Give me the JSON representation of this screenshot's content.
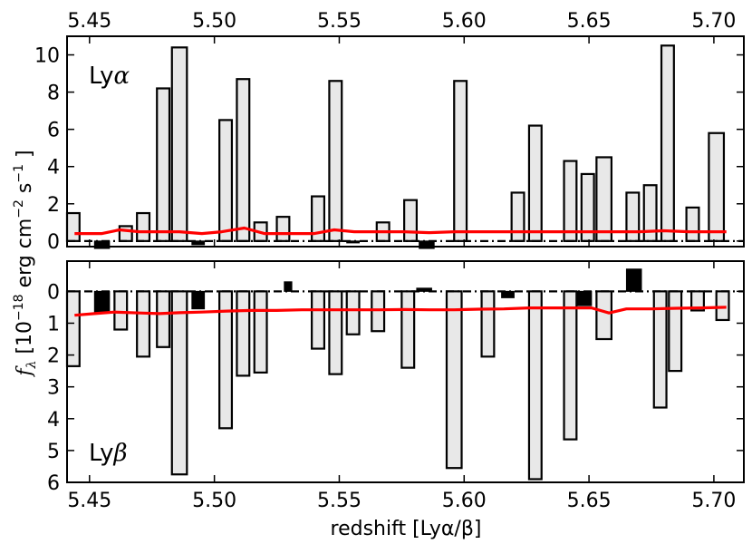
{
  "chart_data": {
    "type": "bar",
    "xlabel": "redshift [Lyα/β]",
    "ylabel": "f_λ [10^-18 erg cm^-2 s^-1]",
    "xlim": [
      5.441,
      5.712
    ],
    "x_ticks": [
      "5.45",
      "5.50",
      "5.55",
      "5.60",
      "5.65",
      "5.70"
    ],
    "grid": false,
    "panels": [
      {
        "name": "Lyα",
        "ylim": [
          -0.3,
          11
        ],
        "y_ticks": [
          0,
          2,
          4,
          6,
          8,
          10
        ],
        "inverted": false,
        "bars": [
          {
            "x0": 5.441,
            "x1": 5.446,
            "v": 1.5
          },
          {
            "x0": 5.462,
            "x1": 5.467,
            "v": 0.8
          },
          {
            "x0": 5.469,
            "x1": 5.474,
            "v": 1.5
          },
          {
            "x0": 5.477,
            "x1": 5.482,
            "v": 8.2
          },
          {
            "x0": 5.483,
            "x1": 5.489,
            "v": 10.4
          },
          {
            "x0": 5.502,
            "x1": 5.507,
            "v": 6.5
          },
          {
            "x0": 5.509,
            "x1": 5.514,
            "v": 8.7
          },
          {
            "x0": 5.516,
            "x1": 5.521,
            "v": 1.0
          },
          {
            "x0": 5.525,
            "x1": 5.53,
            "v": 1.3
          },
          {
            "x0": 5.539,
            "x1": 5.544,
            "v": 2.4
          },
          {
            "x0": 5.546,
            "x1": 5.551,
            "v": 8.6
          },
          {
            "x0": 5.565,
            "x1": 5.57,
            "v": 1.0
          },
          {
            "x0": 5.576,
            "x1": 5.581,
            "v": 2.2
          },
          {
            "x0": 5.596,
            "x1": 5.601,
            "v": 8.6
          },
          {
            "x0": 5.619,
            "x1": 5.624,
            "v": 2.6
          },
          {
            "x0": 5.626,
            "x1": 5.631,
            "v": 6.2
          },
          {
            "x0": 5.64,
            "x1": 5.645,
            "v": 4.3
          },
          {
            "x0": 5.647,
            "x1": 5.652,
            "v": 3.6
          },
          {
            "x0": 5.653,
            "x1": 5.659,
            "v": 4.5
          },
          {
            "x0": 5.665,
            "x1": 5.67,
            "v": 2.6
          },
          {
            "x0": 5.672,
            "x1": 5.677,
            "v": 3.0
          },
          {
            "x0": 5.679,
            "x1": 5.684,
            "v": 10.5
          },
          {
            "x0": 5.689,
            "x1": 5.694,
            "v": 1.8
          },
          {
            "x0": 5.698,
            "x1": 5.704,
            "v": 5.8
          }
        ],
        "neg_bars": [
          {
            "x0": 5.452,
            "x1": 5.458,
            "v": -0.4
          },
          {
            "x0": 5.491,
            "x1": 5.496,
            "v": -0.2
          },
          {
            "x0": 5.553,
            "x1": 5.558,
            "v": -0.1
          },
          {
            "x0": 5.582,
            "x1": 5.588,
            "v": -0.4
          }
        ],
        "noise": {
          "x": [
            5.444,
            5.455,
            5.462,
            5.47,
            5.478,
            5.486,
            5.495,
            5.503,
            5.512,
            5.52,
            5.53,
            5.54,
            5.548,
            5.556,
            5.566,
            5.576,
            5.586,
            5.596,
            5.61,
            5.62,
            5.632,
            5.645,
            5.65,
            5.66,
            5.67,
            5.68,
            5.69,
            5.705
          ],
          "y": [
            0.4,
            0.4,
            0.6,
            0.5,
            0.5,
            0.5,
            0.4,
            0.5,
            0.7,
            0.4,
            0.4,
            0.4,
            0.6,
            0.5,
            0.5,
            0.5,
            0.45,
            0.5,
            0.5,
            0.5,
            0.5,
            0.5,
            0.5,
            0.5,
            0.5,
            0.55,
            0.5,
            0.5
          ]
        }
      },
      {
        "name": "Lyβ",
        "ylim": [
          -0.95,
          6
        ],
        "y_ticks": [
          0,
          1,
          2,
          3,
          4,
          5,
          6
        ],
        "inverted": true,
        "bars": [
          {
            "x0": 5.441,
            "x1": 5.446,
            "v": 2.35
          },
          {
            "x0": 5.46,
            "x1": 5.465,
            "v": 1.2
          },
          {
            "x0": 5.469,
            "x1": 5.474,
            "v": 2.05
          },
          {
            "x0": 5.477,
            "x1": 5.482,
            "v": 1.75
          },
          {
            "x0": 5.483,
            "x1": 5.489,
            "v": 5.75
          },
          {
            "x0": 5.502,
            "x1": 5.507,
            "v": 4.3
          },
          {
            "x0": 5.509,
            "x1": 5.514,
            "v": 2.65
          },
          {
            "x0": 5.516,
            "x1": 5.521,
            "v": 2.55
          },
          {
            "x0": 5.539,
            "x1": 5.544,
            "v": 1.8
          },
          {
            "x0": 5.546,
            "x1": 5.551,
            "v": 2.6
          },
          {
            "x0": 5.553,
            "x1": 5.558,
            "v": 1.35
          },
          {
            "x0": 5.563,
            "x1": 5.568,
            "v": 1.25
          },
          {
            "x0": 5.575,
            "x1": 5.58,
            "v": 2.4
          },
          {
            "x0": 5.593,
            "x1": 5.599,
            "v": 5.55
          },
          {
            "x0": 5.607,
            "x1": 5.612,
            "v": 2.05
          },
          {
            "x0": 5.626,
            "x1": 5.631,
            "v": 5.9
          },
          {
            "x0": 5.64,
            "x1": 5.645,
            "v": 4.65
          },
          {
            "x0": 5.653,
            "x1": 5.659,
            "v": 1.5
          },
          {
            "x0": 5.676,
            "x1": 5.681,
            "v": 3.65
          },
          {
            "x0": 5.682,
            "x1": 5.687,
            "v": 2.5
          },
          {
            "x0": 5.691,
            "x1": 5.696,
            "v": 0.6
          },
          {
            "x0": 5.701,
            "x1": 5.706,
            "v": 0.9
          }
        ],
        "neg_bars": [
          {
            "x0": 5.452,
            "x1": 5.458,
            "v": 0.65
          },
          {
            "x0": 5.491,
            "x1": 5.496,
            "v": 0.55
          },
          {
            "x0": 5.528,
            "x1": 5.531,
            "v": -0.3
          },
          {
            "x0": 5.581,
            "x1": 5.587,
            "v": -0.1
          },
          {
            "x0": 5.615,
            "x1": 5.62,
            "v": 0.2
          },
          {
            "x0": 5.645,
            "x1": 5.651,
            "v": 0.45
          },
          {
            "x0": 5.665,
            "x1": 5.671,
            "v": -0.7
          }
        ],
        "noise": {
          "x": [
            5.444,
            5.452,
            5.46,
            5.47,
            5.478,
            5.486,
            5.495,
            5.505,
            5.515,
            5.525,
            5.535,
            5.545,
            5.556,
            5.566,
            5.576,
            5.586,
            5.596,
            5.606,
            5.616,
            5.626,
            5.636,
            5.646,
            5.651,
            5.658,
            5.665,
            5.675,
            5.685,
            5.695,
            5.705
          ],
          "y": [
            0.75,
            0.7,
            0.65,
            0.68,
            0.7,
            0.67,
            0.65,
            0.62,
            0.6,
            0.6,
            0.58,
            0.58,
            0.58,
            0.58,
            0.57,
            0.58,
            0.58,
            0.56,
            0.55,
            0.52,
            0.52,
            0.52,
            0.52,
            0.68,
            0.55,
            0.55,
            0.53,
            0.52,
            0.5
          ]
        }
      }
    ]
  }
}
